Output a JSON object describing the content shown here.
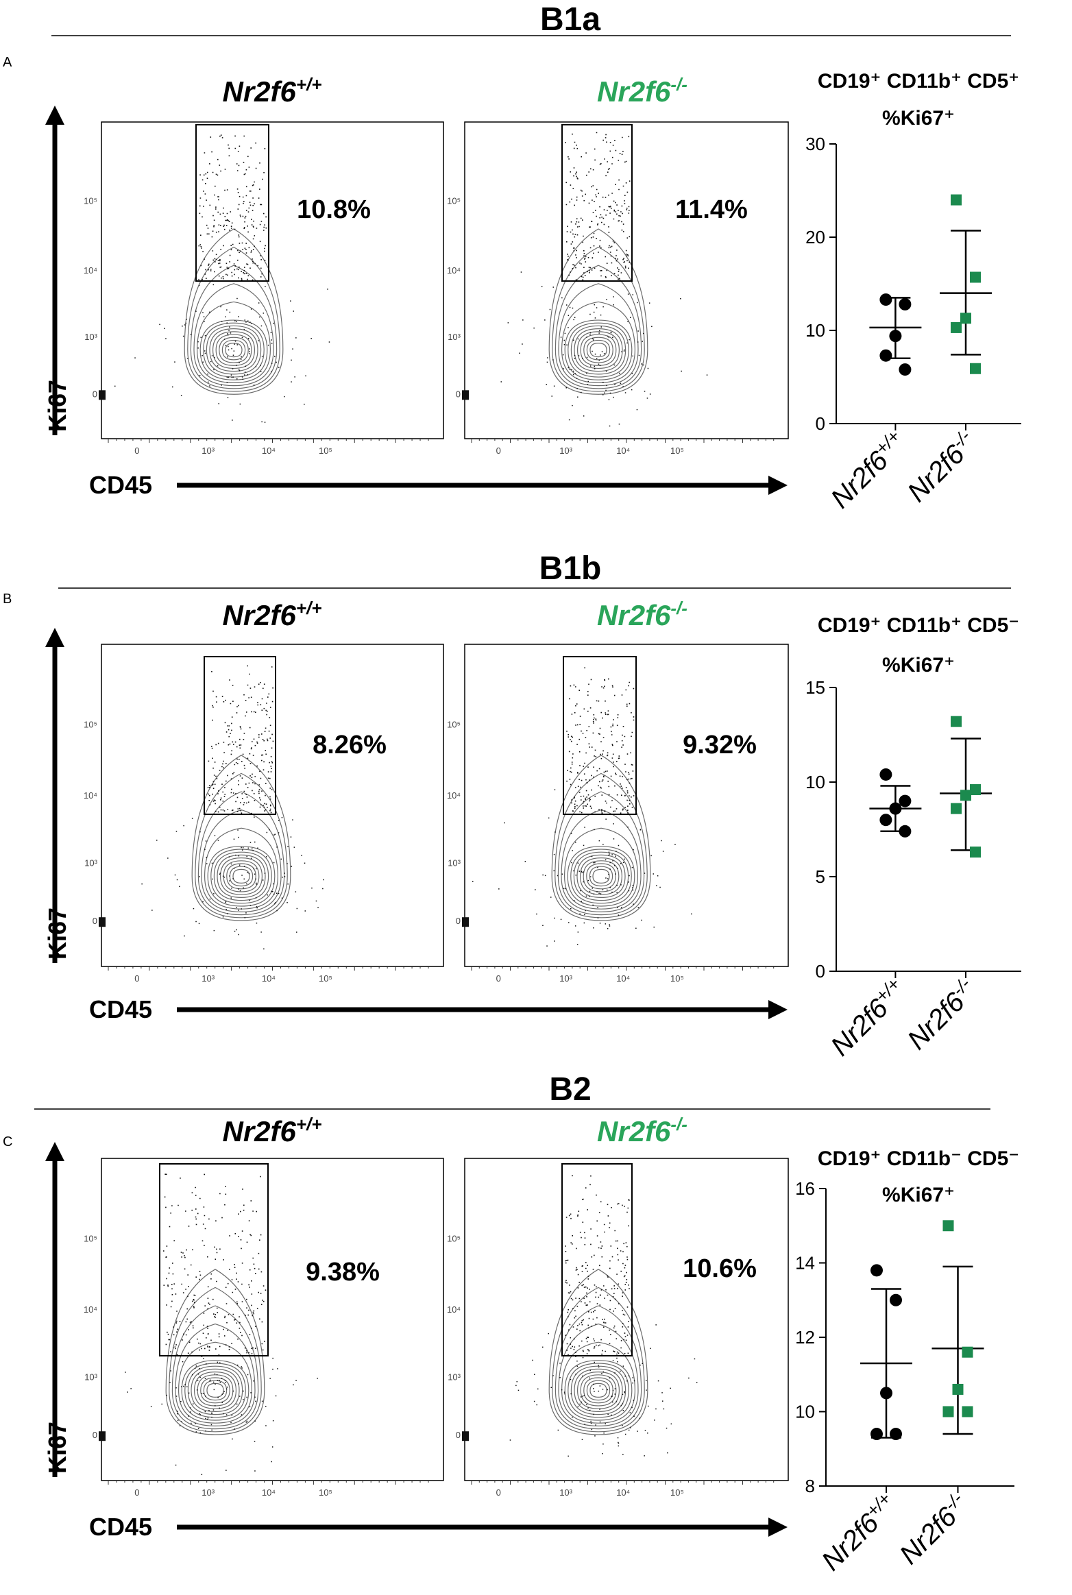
{
  "colors": {
    "ko": "#2aa55a",
    "ko_marker": "#1b8a4e",
    "wt": "#000000",
    "contour": "#6b6b6b"
  },
  "panels": [
    {
      "label": "A",
      "title": "B1a",
      "wt": {
        "name": "Nr2f6",
        "sup": "+/+",
        "percent": "10.8%"
      },
      "ko": {
        "name": "Nr2f6",
        "sup": "-/-",
        "percent": "11.4%"
      },
      "flow_xlabel": "CD45",
      "flow_ylabel": "Ki67",
      "flow_xticks": [
        "0",
        "10³",
        "10⁴",
        "10⁵"
      ],
      "flow_yticks": [
        "0",
        "10³",
        "10⁴",
        "10⁵"
      ],
      "chart_title_line1": "CD19⁺ CD11b⁺ CD5⁺",
      "chart_title_line2": "%Ki67⁺"
    },
    {
      "label": "B",
      "title": "B1b",
      "wt": {
        "name": "Nr2f6",
        "sup": "+/+",
        "percent": "8.26%"
      },
      "ko": {
        "name": "Nr2f6",
        "sup": "-/-",
        "percent": "9.32%"
      },
      "flow_xlabel": "CD45",
      "flow_ylabel": "Ki67",
      "flow_xticks": [
        "0",
        "10³",
        "10⁴",
        "10⁵"
      ],
      "flow_yticks": [
        "0",
        "10³",
        "10⁴",
        "10⁵"
      ],
      "chart_title_line1": "CD19⁺ CD11b⁺ CD5⁻",
      "chart_title_line2": "%Ki67⁺"
    },
    {
      "label": "C",
      "title": "B2",
      "wt": {
        "name": "Nr2f6",
        "sup": "+/+",
        "percent": "9.38%"
      },
      "ko": {
        "name": "Nr2f6",
        "sup": "-/-",
        "percent": "10.6%"
      },
      "flow_xlabel": "CD45",
      "flow_ylabel": "Ki67",
      "flow_xticks": [
        "0",
        "10³",
        "10⁴",
        "10⁵"
      ],
      "flow_yticks": [
        "0",
        "10³",
        "10⁴",
        "10⁵"
      ],
      "chart_title_line1": "CD19⁺ CD11b⁻ CD5⁻",
      "chart_title_line2": "%Ki67⁺"
    }
  ],
  "chart_data": [
    {
      "type": "scatter",
      "title": "CD19⁺ CD11b⁺ CD5⁺ %Ki67⁺",
      "categories": [
        "Nr2f6+/+",
        "Nr2f6-/-"
      ],
      "ylim": [
        0,
        30
      ],
      "yticks": [
        0,
        10,
        20,
        30
      ],
      "series": [
        {
          "name": "Nr2f6+/+",
          "values": [
            13.3,
            12.8,
            9.4,
            7.3,
            5.8
          ],
          "mean": 10.3,
          "sd_low": 7.0,
          "sd_high": 13.5
        },
        {
          "name": "Nr2f6-/-",
          "values": [
            24.0,
            15.7,
            11.3,
            10.3,
            5.9
          ],
          "mean": 14.0,
          "sd_low": 7.4,
          "sd_high": 20.7
        }
      ]
    },
    {
      "type": "scatter",
      "title": "CD19⁺ CD11b⁺ CD5⁻ %Ki67⁺",
      "categories": [
        "Nr2f6+/+",
        "Nr2f6-/-"
      ],
      "ylim": [
        0,
        15
      ],
      "yticks": [
        0,
        5,
        10,
        15
      ],
      "series": [
        {
          "name": "Nr2f6+/+",
          "values": [
            10.4,
            9.0,
            8.6,
            8.0,
            7.4
          ],
          "mean": 8.6,
          "sd_low": 7.4,
          "sd_high": 9.8
        },
        {
          "name": "Nr2f6-/-",
          "values": [
            13.2,
            9.6,
            9.3,
            8.6,
            6.3
          ],
          "mean": 9.4,
          "sd_low": 6.4,
          "sd_high": 12.3
        }
      ]
    },
    {
      "type": "scatter",
      "title": "CD19⁺ CD11b⁻ CD5⁻ %Ki67⁺",
      "categories": [
        "Nr2f6+/+",
        "Nr2f6-/-"
      ],
      "ylim": [
        8,
        16
      ],
      "yticks": [
        8,
        10,
        12,
        14,
        16
      ],
      "series": [
        {
          "name": "Nr2f6+/+",
          "values": [
            13.8,
            13.0,
            10.5,
            9.4,
            9.4
          ],
          "mean": 11.3,
          "sd_low": 9.3,
          "sd_high": 13.3
        },
        {
          "name": "Nr2f6-/-",
          "values": [
            15.0,
            11.6,
            10.6,
            10.0,
            10.0
          ],
          "mean": 11.7,
          "sd_low": 9.4,
          "sd_high": 13.9
        }
      ]
    }
  ]
}
